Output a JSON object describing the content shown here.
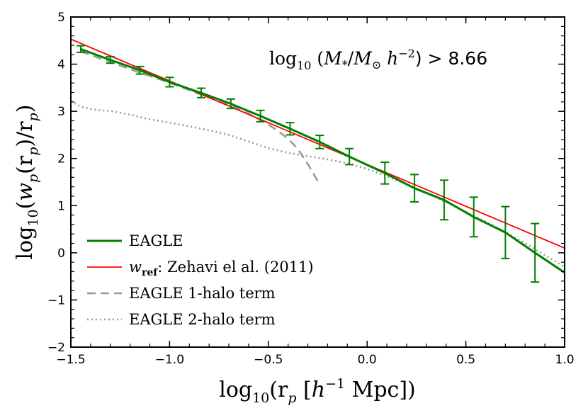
{
  "chart_data": {
    "type": "line",
    "title": "",
    "xlabel": "log10(rp [h^-1 Mpc])",
    "ylabel": "log10(wp(rp)/rp)",
    "xlim": [
      -1.5,
      1.0
    ],
    "ylim": [
      -2,
      5
    ],
    "xticks": [
      -1.5,
      -1.0,
      -0.5,
      0.0,
      0.5,
      1.0
    ],
    "xtick_labels": [
      "−1.5",
      "−1.0",
      "−0.5",
      "0.0",
      "0.5",
      "1.0"
    ],
    "yticks": [
      -2,
      -1,
      0,
      1,
      2,
      3,
      4,
      5
    ],
    "ytick_labels": [
      "−2",
      "−1",
      "0",
      "1",
      "2",
      "3",
      "4",
      "5"
    ],
    "annotation": "log10 (M*/M⊙ h^-2) > 8.66",
    "legend_position": "lower-left",
    "colors": {
      "eagle": "#008000",
      "zehavi": "#ff0000",
      "one_halo": "#999999",
      "two_halo": "#999999"
    },
    "series": [
      {
        "name": "EAGLE",
        "style": "solid",
        "x": [
          -1.45,
          -1.3,
          -1.15,
          -1.0,
          -0.84,
          -0.69,
          -0.54,
          -0.39,
          -0.24,
          -0.09,
          0.09,
          0.24,
          0.39,
          0.54,
          0.7,
          0.85,
          1.0
        ],
        "y": [
          4.32,
          4.09,
          3.87,
          3.62,
          3.39,
          3.16,
          2.9,
          2.63,
          2.35,
          2.04,
          1.69,
          1.37,
          1.12,
          0.76,
          0.43,
          0.0,
          -0.42
        ]
      },
      {
        "name": "EAGLE error bars",
        "x": [
          -1.45,
          -1.3,
          -1.15,
          -1.0,
          -0.84,
          -0.69,
          -0.54,
          -0.39,
          -0.24,
          -0.09,
          0.09,
          0.24,
          0.39,
          0.54,
          0.7,
          0.85
        ],
        "y": [
          4.32,
          4.09,
          3.87,
          3.62,
          3.39,
          3.16,
          2.9,
          2.63,
          2.35,
          2.04,
          1.69,
          1.37,
          1.12,
          0.76,
          0.43,
          0.0
        ],
        "err": [
          0.07,
          0.07,
          0.08,
          0.1,
          0.1,
          0.1,
          0.12,
          0.13,
          0.14,
          0.17,
          0.23,
          0.29,
          0.42,
          0.42,
          0.55,
          0.62
        ]
      },
      {
        "name": "w_ref: Zehavi el al. (2011)",
        "style": "solid",
        "x": [
          -1.5,
          1.0
        ],
        "y": [
          4.53,
          0.1
        ]
      },
      {
        "name": "EAGLE 1-halo term",
        "style": "dashed",
        "x": [
          -1.45,
          -1.35,
          -1.25,
          -1.15,
          -1.05,
          -0.95,
          -0.85,
          -0.75,
          -0.65,
          -0.55,
          -0.5,
          -0.45,
          -0.4,
          -0.35,
          -0.3,
          -0.25
        ],
        "y": [
          4.27,
          4.12,
          3.97,
          3.82,
          3.68,
          3.53,
          3.37,
          3.22,
          3.05,
          2.84,
          2.72,
          2.58,
          2.42,
          2.2,
          1.88,
          1.52
        ]
      },
      {
        "name": "EAGLE 2-halo term",
        "style": "dotted",
        "x": [
          -1.5,
          -1.45,
          -1.4,
          -1.35,
          -1.3,
          -1.2,
          -1.1,
          -1.0,
          -0.9,
          -0.8,
          -0.7,
          -0.6,
          -0.5,
          -0.4,
          -0.3,
          -0.2,
          -0.1,
          0.0,
          0.1,
          0.2,
          0.3,
          0.4,
          0.5,
          0.6,
          0.7,
          0.8,
          0.9,
          1.0
        ],
        "y": [
          3.22,
          3.1,
          3.05,
          3.02,
          3.01,
          2.93,
          2.83,
          2.76,
          2.68,
          2.6,
          2.5,
          2.36,
          2.22,
          2.12,
          2.05,
          1.98,
          1.9,
          1.78,
          1.62,
          1.45,
          1.27,
          1.07,
          0.87,
          0.66,
          0.44,
          0.2,
          -0.05,
          -0.3
        ]
      }
    ],
    "legend": [
      {
        "label": "EAGLE",
        "style": "solid",
        "color_key": "eagle"
      },
      {
        "label_prefix": "w",
        "label_sub": "ref",
        "label_rest": ": Zehavi el al. (2011)",
        "style": "solid",
        "color_key": "zehavi"
      },
      {
        "label": "EAGLE 1-halo term",
        "style": "dashed",
        "color_key": "one_halo"
      },
      {
        "label": "EAGLE 2-halo term",
        "style": "dotted",
        "color_key": "two_halo"
      }
    ]
  },
  "annotation_parts": {
    "log": "log",
    "ten": "10",
    "open": " (",
    "m": "M",
    "star": "*",
    "slash": "/",
    "m2": "M",
    "sun": "⊙",
    "space": " ",
    "h": "h",
    "exp": "−2",
    "close": ") > 8.66"
  },
  "xlabel_parts": {
    "log": "log",
    "ten": "10",
    "open": "(r",
    "p": "p",
    "mid": " [",
    "h": "h",
    "exp": "−1",
    "rest": " Mpc])"
  },
  "ylabel_parts": {
    "log": "log",
    "ten": "10",
    "open": "(",
    "w": "w",
    "p1": "p",
    "mid": "(r",
    "p2": "p",
    "mid2": ")/r",
    "p3": "p",
    "close": ")"
  }
}
